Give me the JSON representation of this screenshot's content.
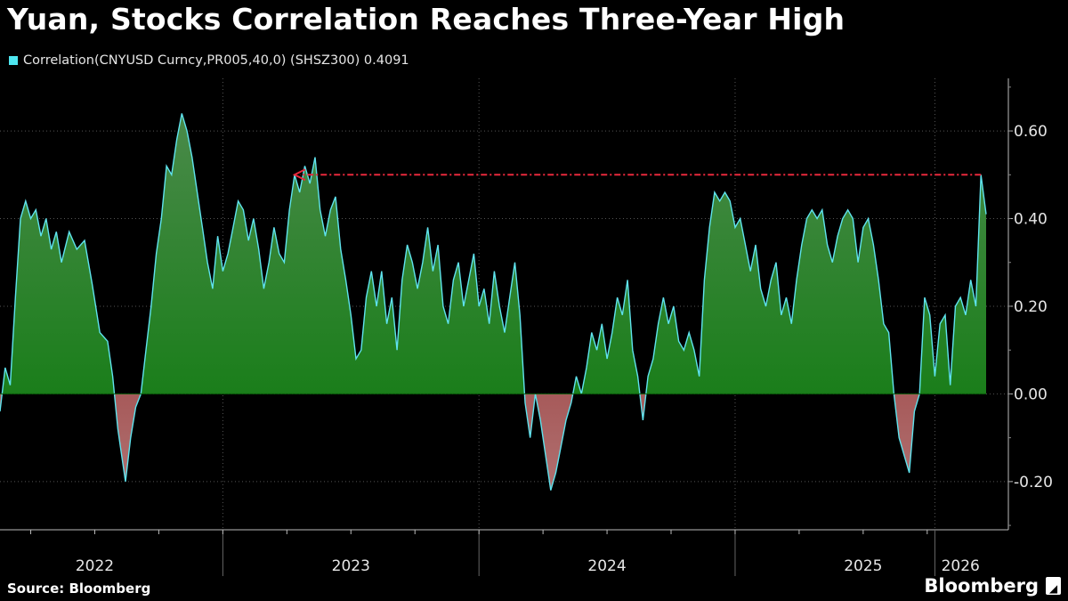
{
  "title": "Yuan, Stocks Correlation Reaches Three-Year High",
  "legend": {
    "label": "Correlation(CNYUSD Curncy,PR005,40,0) (SHSZ300) 0.4091",
    "color": "#4ee6f0"
  },
  "footer": {
    "source": "Source: Bloomberg",
    "brand": "Bloomberg",
    "brand_logo": "gauge-icon"
  },
  "colors": {
    "positive_fill": "#0a7a0a",
    "negative_fill": "#8b1a1a",
    "line": "#5fe3ee",
    "arrow": "#e8283c",
    "grid": "#555555"
  },
  "chart_data": {
    "type": "area",
    "series": [
      {
        "values": [
          [
            2021.75,
            -0.04
          ],
          [
            2021.77,
            0.06
          ],
          [
            2021.79,
            0.02
          ],
          [
            2021.81,
            0.22
          ],
          [
            2021.83,
            0.4
          ],
          [
            2021.85,
            0.44
          ],
          [
            2021.87,
            0.4
          ],
          [
            2021.89,
            0.42
          ],
          [
            2021.91,
            0.36
          ],
          [
            2021.93,
            0.4
          ],
          [
            2021.95,
            0.33
          ],
          [
            2021.97,
            0.37
          ],
          [
            2021.99,
            0.3
          ],
          [
            2022.02,
            0.37
          ],
          [
            2022.05,
            0.33
          ],
          [
            2022.08,
            0.35
          ],
          [
            2022.11,
            0.25
          ],
          [
            2022.14,
            0.14
          ],
          [
            2022.17,
            0.12
          ],
          [
            2022.19,
            0.04
          ],
          [
            2022.21,
            -0.08
          ],
          [
            2022.23,
            -0.16
          ],
          [
            2022.24,
            -0.2
          ],
          [
            2022.26,
            -0.1
          ],
          [
            2022.28,
            -0.03
          ],
          [
            2022.3,
            0.0
          ],
          [
            2022.32,
            0.1
          ],
          [
            2022.34,
            0.2
          ],
          [
            2022.36,
            0.32
          ],
          [
            2022.38,
            0.4
          ],
          [
            2022.4,
            0.52
          ],
          [
            2022.42,
            0.5
          ],
          [
            2022.44,
            0.58
          ],
          [
            2022.46,
            0.64
          ],
          [
            2022.48,
            0.6
          ],
          [
            2022.5,
            0.54
          ],
          [
            2022.52,
            0.46
          ],
          [
            2022.54,
            0.38
          ],
          [
            2022.56,
            0.3
          ],
          [
            2022.58,
            0.24
          ],
          [
            2022.6,
            0.36
          ],
          [
            2022.62,
            0.28
          ],
          [
            2022.64,
            0.32
          ],
          [
            2022.66,
            0.38
          ],
          [
            2022.68,
            0.44
          ],
          [
            2022.7,
            0.42
          ],
          [
            2022.72,
            0.35
          ],
          [
            2022.74,
            0.4
          ],
          [
            2022.76,
            0.33
          ],
          [
            2022.78,
            0.24
          ],
          [
            2022.8,
            0.3
          ],
          [
            2022.82,
            0.38
          ],
          [
            2022.84,
            0.32
          ],
          [
            2022.86,
            0.3
          ],
          [
            2022.88,
            0.42
          ],
          [
            2022.9,
            0.5
          ],
          [
            2022.92,
            0.46
          ],
          [
            2022.94,
            0.52
          ],
          [
            2022.96,
            0.48
          ],
          [
            2022.98,
            0.54
          ],
          [
            2023.0,
            0.42
          ],
          [
            2023.02,
            0.36
          ],
          [
            2023.04,
            0.42
          ],
          [
            2023.06,
            0.45
          ],
          [
            2023.08,
            0.33
          ],
          [
            2023.1,
            0.26
          ],
          [
            2023.12,
            0.18
          ],
          [
            2023.14,
            0.08
          ],
          [
            2023.16,
            0.1
          ],
          [
            2023.18,
            0.22
          ],
          [
            2023.2,
            0.28
          ],
          [
            2023.22,
            0.2
          ],
          [
            2023.24,
            0.28
          ],
          [
            2023.26,
            0.16
          ],
          [
            2023.28,
            0.22
          ],
          [
            2023.3,
            0.1
          ],
          [
            2023.32,
            0.26
          ],
          [
            2023.34,
            0.34
          ],
          [
            2023.36,
            0.3
          ],
          [
            2023.38,
            0.24
          ],
          [
            2023.4,
            0.3
          ],
          [
            2023.42,
            0.38
          ],
          [
            2023.44,
            0.28
          ],
          [
            2023.46,
            0.34
          ],
          [
            2023.48,
            0.2
          ],
          [
            2023.5,
            0.16
          ],
          [
            2023.52,
            0.26
          ],
          [
            2023.54,
            0.3
          ],
          [
            2023.56,
            0.2
          ],
          [
            2023.58,
            0.26
          ],
          [
            2023.6,
            0.32
          ],
          [
            2023.62,
            0.2
          ],
          [
            2023.64,
            0.24
          ],
          [
            2023.66,
            0.16
          ],
          [
            2023.68,
            0.28
          ],
          [
            2023.7,
            0.2
          ],
          [
            2023.72,
            0.14
          ],
          [
            2023.74,
            0.22
          ],
          [
            2023.76,
            0.3
          ],
          [
            2023.78,
            0.18
          ],
          [
            2023.8,
            -0.02
          ],
          [
            2023.82,
            -0.1
          ],
          [
            2023.84,
            0.0
          ],
          [
            2023.86,
            -0.06
          ],
          [
            2023.88,
            -0.14
          ],
          [
            2023.9,
            -0.22
          ],
          [
            2023.92,
            -0.18
          ],
          [
            2023.94,
            -0.12
          ],
          [
            2023.96,
            -0.06
          ],
          [
            2023.98,
            -0.02
          ],
          [
            2024.0,
            0.04
          ],
          [
            2024.02,
            0.0
          ],
          [
            2024.04,
            0.06
          ],
          [
            2024.06,
            0.14
          ],
          [
            2024.08,
            0.1
          ],
          [
            2024.1,
            0.16
          ],
          [
            2024.12,
            0.08
          ],
          [
            2024.14,
            0.14
          ],
          [
            2024.16,
            0.22
          ],
          [
            2024.18,
            0.18
          ],
          [
            2024.2,
            0.26
          ],
          [
            2024.22,
            0.1
          ],
          [
            2024.24,
            0.04
          ],
          [
            2024.26,
            -0.06
          ],
          [
            2024.28,
            0.04
          ],
          [
            2024.3,
            0.08
          ],
          [
            2024.32,
            0.16
          ],
          [
            2024.34,
            0.22
          ],
          [
            2024.36,
            0.16
          ],
          [
            2024.38,
            0.2
          ],
          [
            2024.4,
            0.12
          ],
          [
            2024.42,
            0.1
          ],
          [
            2024.44,
            0.14
          ],
          [
            2024.46,
            0.1
          ],
          [
            2024.48,
            0.04
          ],
          [
            2024.5,
            0.26
          ],
          [
            2024.52,
            0.38
          ],
          [
            2024.54,
            0.46
          ],
          [
            2024.56,
            0.44
          ],
          [
            2024.58,
            0.46
          ],
          [
            2024.6,
            0.44
          ],
          [
            2024.62,
            0.38
          ],
          [
            2024.64,
            0.4
          ],
          [
            2024.66,
            0.34
          ],
          [
            2024.68,
            0.28
          ],
          [
            2024.7,
            0.34
          ],
          [
            2024.72,
            0.24
          ],
          [
            2024.74,
            0.2
          ],
          [
            2024.76,
            0.26
          ],
          [
            2024.78,
            0.3
          ],
          [
            2024.8,
            0.18
          ],
          [
            2024.82,
            0.22
          ],
          [
            2024.84,
            0.16
          ],
          [
            2024.86,
            0.26
          ],
          [
            2024.88,
            0.34
          ],
          [
            2024.9,
            0.4
          ],
          [
            2024.92,
            0.42
          ],
          [
            2024.94,
            0.4
          ],
          [
            2024.96,
            0.42
          ],
          [
            2024.98,
            0.34
          ],
          [
            2025.0,
            0.3
          ],
          [
            2025.02,
            0.36
          ],
          [
            2025.04,
            0.4
          ],
          [
            2025.06,
            0.42
          ],
          [
            2025.08,
            0.4
          ],
          [
            2025.1,
            0.3
          ],
          [
            2025.12,
            0.38
          ],
          [
            2025.14,
            0.4
          ],
          [
            2025.16,
            0.34
          ],
          [
            2025.18,
            0.26
          ],
          [
            2025.2,
            0.16
          ],
          [
            2025.22,
            0.14
          ],
          [
            2025.24,
            0.0
          ],
          [
            2025.26,
            -0.1
          ],
          [
            2025.28,
            -0.14
          ],
          [
            2025.3,
            -0.18
          ],
          [
            2025.32,
            -0.04
          ],
          [
            2025.34,
            0.0
          ],
          [
            2025.36,
            0.22
          ],
          [
            2025.38,
            0.18
          ],
          [
            2025.4,
            0.04
          ],
          [
            2025.42,
            0.16
          ],
          [
            2025.44,
            0.18
          ],
          [
            2025.46,
            0.02
          ],
          [
            2025.48,
            0.2
          ],
          [
            2025.5,
            0.22
          ],
          [
            2025.52,
            0.18
          ],
          [
            2025.54,
            0.26
          ],
          [
            2025.56,
            0.2
          ],
          [
            2025.58,
            0.5
          ],
          [
            2025.6,
            0.41
          ]
        ]
      }
    ],
    "xlim": [
      2021.75,
      2025.6
    ],
    "xticks": [
      {
        "x": 2022.12,
        "label": "2022"
      },
      {
        "x": 2023.12,
        "label": "2023"
      },
      {
        "x": 2024.12,
        "label": "2024"
      },
      {
        "x": 2025.12,
        "label": "2025"
      },
      {
        "x": 2025.5,
        "label": "2026"
      }
    ],
    "ylim": [
      -0.31,
      0.72
    ],
    "yticks": [
      -0.2,
      0.0,
      0.2,
      0.4,
      0.6
    ],
    "ytick_labels": [
      "-0.20",
      "0.00",
      "0.20",
      "0.40",
      "0.60"
    ],
    "annotation": {
      "type": "arrow",
      "from_x": 2025.58,
      "to_x": 2022.9,
      "y": 0.5
    },
    "grid": true,
    "legend_position": "top-left"
  }
}
